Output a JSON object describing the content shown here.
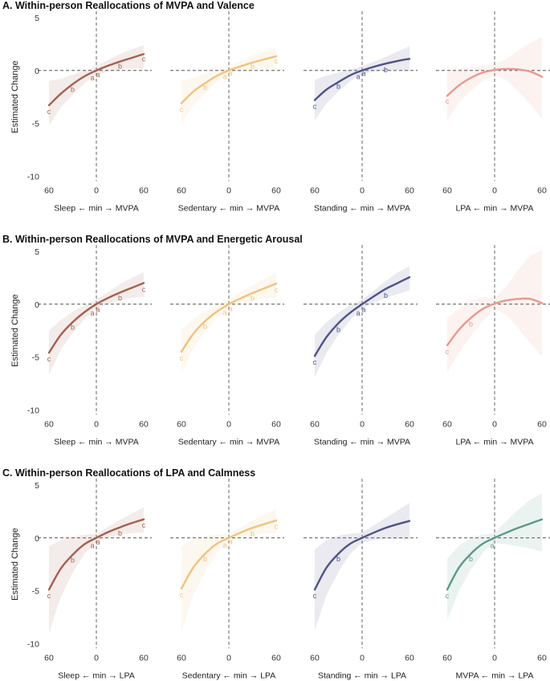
{
  "chart_data": [
    {
      "type": "line",
      "title": "A. Within-person Reallocations of MVPA and Valence",
      "ylabel": "Estimated Change",
      "ylim": [
        -10,
        5
      ],
      "yticks": [
        5,
        0,
        -5,
        -10
      ],
      "xticks": [
        60,
        0,
        60
      ],
      "panels": [
        {
          "xlabel": "Sleep ← min → MVPA",
          "color": "#a5604f",
          "x": [
            -60,
            -45,
            -30,
            -15,
            0,
            15,
            30,
            45,
            60
          ],
          "y": [
            -3.3,
            -2.2,
            -1.3,
            -0.55,
            0,
            0.45,
            0.85,
            1.2,
            1.55
          ],
          "ci_lower": [
            -5.2,
            -3.5,
            -2.3,
            -1.2,
            -0.4,
            -0.1,
            0.1,
            0.2,
            0.1
          ],
          "ci_upper": [
            -1.0,
            -0.8,
            -0.4,
            0,
            0.45,
            1.0,
            1.55,
            2.0,
            2.4
          ],
          "letters": [
            {
              "text": "c",
              "x": -60,
              "y": -3.9
            },
            {
              "text": "b",
              "x": -30,
              "y": -1.8
            },
            {
              "text": "a",
              "x": -5,
              "y": -0.7
            },
            {
              "text": "a",
              "x": 2,
              "y": -0.4
            },
            {
              "text": "b",
              "x": 30,
              "y": 0.4
            },
            {
              "text": "c",
              "x": 60,
              "y": 1.1
            }
          ]
        },
        {
          "xlabel": "Sedentary ← min → MVPA",
          "color": "#f1c27d",
          "x": [
            -60,
            -45,
            -30,
            -15,
            0,
            15,
            30,
            45,
            60
          ],
          "y": [
            -3.1,
            -2.0,
            -1.2,
            -0.5,
            0,
            0.4,
            0.75,
            1.05,
            1.35
          ],
          "ci_lower": [
            -5.0,
            -3.3,
            -2.2,
            -1.1,
            -0.4,
            -0.1,
            0.05,
            0.15,
            0.1
          ],
          "ci_upper": [
            -1.0,
            -0.7,
            -0.3,
            0.05,
            0.45,
            0.9,
            1.4,
            1.8,
            2.2
          ],
          "letters": [
            {
              "text": "c",
              "x": -60,
              "y": -3.7
            },
            {
              "text": "b",
              "x": -30,
              "y": -1.6
            },
            {
              "text": "a",
              "x": -5,
              "y": -0.6
            },
            {
              "text": "a",
              "x": 2,
              "y": -0.3
            },
            {
              "text": "b",
              "x": 30,
              "y": 0.35
            },
            {
              "text": "c",
              "x": 60,
              "y": 0.9
            }
          ]
        },
        {
          "xlabel": "Standing ← min → MVPA",
          "color": "#4f5387",
          "x": [
            -60,
            -45,
            -30,
            -15,
            0,
            15,
            30,
            45,
            60
          ],
          "y": [
            -2.8,
            -1.8,
            -1.1,
            -0.45,
            0,
            0.35,
            0.65,
            0.9,
            1.1
          ],
          "ci_lower": [
            -4.7,
            -3.1,
            -2.0,
            -1.0,
            -0.35,
            -0.1,
            0,
            0.05,
            -0.1
          ],
          "ci_upper": [
            -0.9,
            -0.5,
            -0.2,
            0.1,
            0.4,
            0.85,
            1.3,
            1.8,
            2.3
          ],
          "letters": [
            {
              "text": "c",
              "x": -60,
              "y": -3.4
            },
            {
              "text": "b",
              "x": -30,
              "y": -1.5
            },
            {
              "text": "a",
              "x": -5,
              "y": -0.6
            },
            {
              "text": "a",
              "x": 2,
              "y": -0.3
            },
            {
              "text": "b",
              "x": 30,
              "y": 0.05
            }
          ]
        },
        {
          "xlabel": "LPA ← min → MVPA",
          "color": "#e8998d",
          "x": [
            -60,
            -45,
            -30,
            -15,
            0,
            15,
            30,
            45,
            60
          ],
          "y": [
            -2.4,
            -1.4,
            -0.7,
            -0.2,
            0.05,
            0.15,
            0.1,
            -0.1,
            -0.6
          ],
          "ci_lower": [
            -4.7,
            -3.0,
            -1.9,
            -1.0,
            -0.4,
            -0.9,
            -2.0,
            -3.2,
            -4.6
          ],
          "ci_upper": [
            -0.2,
            0.1,
            0.3,
            0.5,
            0.55,
            1.1,
            1.9,
            2.6,
            3.2
          ],
          "letters": [
            {
              "text": "c",
              "x": -60,
              "y": -2.9
            }
          ]
        }
      ]
    },
    {
      "type": "line",
      "title": "B. Within-person Reallocations of MVPA and Energetic Arousal",
      "ylabel": "Estimated Change",
      "ylim": [
        -10,
        5
      ],
      "yticks": [
        5,
        0,
        -5,
        -10
      ],
      "xticks": [
        60,
        0,
        60
      ],
      "panels": [
        {
          "xlabel": "Sleep ← min → MVPA",
          "color": "#a5604f",
          "x": [
            -60,
            -45,
            -30,
            -15,
            0,
            15,
            30,
            45,
            60
          ],
          "y": [
            -4.6,
            -2.9,
            -1.7,
            -0.75,
            0,
            0.6,
            1.1,
            1.55,
            2.0
          ],
          "ci_lower": [
            -6.7,
            -4.3,
            -2.7,
            -1.4,
            -0.45,
            0.05,
            0.35,
            0.6,
            0.7
          ],
          "ci_upper": [
            -2.5,
            -1.5,
            -0.7,
            -0.1,
            0.45,
            1.15,
            1.9,
            2.5,
            3.0
          ],
          "letters": [
            {
              "text": "c",
              "x": -60,
              "y": -5.2
            },
            {
              "text": "b",
              "x": -30,
              "y": -2.2
            },
            {
              "text": "a",
              "x": -5,
              "y": -0.85
            },
            {
              "text": "a",
              "x": 2,
              "y": -0.5
            },
            {
              "text": "b",
              "x": 30,
              "y": 0.6
            },
            {
              "text": "c",
              "x": 60,
              "y": 1.4
            }
          ]
        },
        {
          "xlabel": "Sedentary ← min → MVPA",
          "color": "#f1c27d",
          "x": [
            -60,
            -45,
            -30,
            -15,
            0,
            15,
            30,
            45,
            60
          ],
          "y": [
            -4.5,
            -2.8,
            -1.6,
            -0.7,
            0,
            0.55,
            1.05,
            1.5,
            1.95
          ],
          "ci_lower": [
            -6.5,
            -4.2,
            -2.6,
            -1.3,
            -0.4,
            0.05,
            0.35,
            0.55,
            0.6
          ],
          "ci_upper": [
            -2.4,
            -1.4,
            -0.6,
            -0.05,
            0.45,
            1.1,
            1.8,
            2.4,
            3.0
          ],
          "letters": [
            {
              "text": "c",
              "x": -60,
              "y": -5.1
            },
            {
              "text": "b",
              "x": -30,
              "y": -2.1
            },
            {
              "text": "a",
              "x": -5,
              "y": -0.8
            },
            {
              "text": "a",
              "x": 2,
              "y": -0.45
            },
            {
              "text": "b",
              "x": 30,
              "y": 0.55
            },
            {
              "text": "c",
              "x": 60,
              "y": 1.35
            }
          ]
        },
        {
          "xlabel": "Standing ← min → MVPA",
          "color": "#4f5387",
          "x": [
            -60,
            -45,
            -30,
            -15,
            0,
            15,
            30,
            45,
            60
          ],
          "y": [
            -4.9,
            -3.1,
            -1.8,
            -0.8,
            0,
            0.75,
            1.45,
            2.0,
            2.55
          ],
          "ci_lower": [
            -6.9,
            -4.6,
            -2.9,
            -1.5,
            -0.45,
            0.15,
            0.6,
            0.95,
            1.3
          ],
          "ci_upper": [
            -2.9,
            -1.7,
            -0.8,
            -0.1,
            0.45,
            1.3,
            2.2,
            3.0,
            3.6
          ],
          "letters": [
            {
              "text": "c",
              "x": -60,
              "y": -5.5
            },
            {
              "text": "b",
              "x": -30,
              "y": -2.4
            },
            {
              "text": "a",
              "x": -5,
              "y": -0.85
            },
            {
              "text": "a",
              "x": 2,
              "y": -0.5
            },
            {
              "text": "b",
              "x": 30,
              "y": 0.8
            }
          ]
        },
        {
          "xlabel": "LPA ← min → MVPA",
          "color": "#e8998d",
          "x": [
            -60,
            -45,
            -30,
            -15,
            0,
            15,
            30,
            45,
            60
          ],
          "y": [
            -3.9,
            -2.4,
            -1.3,
            -0.45,
            0.05,
            0.35,
            0.5,
            0.5,
            0.1
          ],
          "ci_lower": [
            -6.5,
            -4.6,
            -3.0,
            -1.6,
            -0.5,
            -1.0,
            -2.3,
            -3.7,
            -4.9
          ],
          "ci_upper": [
            -1.3,
            -0.4,
            0.3,
            0.7,
            0.6,
            1.7,
            3.3,
            4.6,
            5.1
          ],
          "letters": [
            {
              "text": "c",
              "x": -60,
              "y": -4.5
            },
            {
              "text": "b",
              "x": -30,
              "y": -1.9
            }
          ]
        }
      ]
    },
    {
      "type": "line",
      "title": "C. Within-person Reallocations of LPA and Calmness",
      "ylabel": "Estimated Change",
      "ylim": [
        -10,
        5
      ],
      "yticks": [
        5,
        0,
        -5,
        -10
      ],
      "xticks": [
        60,
        0,
        60
      ],
      "panels": [
        {
          "xlabel": "Sleep ← min → LPA",
          "color": "#a5604f",
          "x": [
            -60,
            -45,
            -30,
            -15,
            0,
            15,
            30,
            45,
            60
          ],
          "y": [
            -4.9,
            -2.9,
            -1.6,
            -0.6,
            0,
            0.55,
            1.0,
            1.4,
            1.75
          ],
          "ci_lower": [
            -9.0,
            -5.6,
            -3.3,
            -1.5,
            -0.4,
            0.05,
            0.3,
            0.45,
            0.5
          ],
          "ci_upper": [
            -0.8,
            -0.2,
            0.1,
            0.3,
            0.4,
            1.05,
            1.7,
            2.3,
            2.9
          ],
          "letters": [
            {
              "text": "c",
              "x": -60,
              "y": -5.5
            },
            {
              "text": "b",
              "x": -30,
              "y": -2.1
            },
            {
              "text": "a",
              "x": -5,
              "y": -0.75
            },
            {
              "text": "a",
              "x": 2,
              "y": -0.4
            },
            {
              "text": "b",
              "x": 30,
              "y": 0.45
            },
            {
              "text": "c",
              "x": 60,
              "y": 1.2
            }
          ]
        },
        {
          "xlabel": "Sedentary ← min → LPA",
          "color": "#f1c27d",
          "x": [
            -60,
            -45,
            -30,
            -15,
            0,
            15,
            30,
            45,
            60
          ],
          "y": [
            -4.8,
            -2.8,
            -1.5,
            -0.55,
            0,
            0.5,
            0.95,
            1.3,
            1.65
          ],
          "ci_lower": [
            -8.8,
            -5.4,
            -3.2,
            -1.4,
            -0.4,
            0,
            0.25,
            0.4,
            0.45
          ],
          "ci_upper": [
            -0.8,
            -0.2,
            0.1,
            0.3,
            0.4,
            1.0,
            1.65,
            2.2,
            2.8
          ],
          "letters": [
            {
              "text": "c",
              "x": -60,
              "y": -5.4
            },
            {
              "text": "b",
              "x": -30,
              "y": -2.0
            },
            {
              "text": "a",
              "x": -5,
              "y": -0.7
            },
            {
              "text": "a",
              "x": 2,
              "y": -0.35
            },
            {
              "text": "b",
              "x": 30,
              "y": 0.4
            },
            {
              "text": "c",
              "x": 60,
              "y": 1.1
            }
          ]
        },
        {
          "xlabel": "Standing ← min → LPA",
          "color": "#4f5387",
          "x": [
            -60,
            -45,
            -30,
            -15,
            0,
            15,
            30,
            45,
            60
          ],
          "y": [
            -4.9,
            -2.8,
            -1.5,
            -0.55,
            0,
            0.5,
            0.95,
            1.3,
            1.6
          ],
          "ci_lower": [
            -8.7,
            -5.4,
            -3.2,
            -1.5,
            -0.5,
            -0.2,
            -0.1,
            -0.1,
            -0.2
          ],
          "ci_upper": [
            -1.1,
            -0.2,
            0.2,
            0.4,
            0.5,
            1.2,
            1.9,
            2.6,
            3.3
          ],
          "letters": [
            {
              "text": "c",
              "x": -60,
              "y": -5.5
            },
            {
              "text": "b",
              "x": -30,
              "y": -2.0
            }
          ]
        },
        {
          "xlabel": "MVPA ← min → LPA",
          "color": "#5b9a8b",
          "x": [
            -60,
            -45,
            -30,
            -15,
            0,
            15,
            30,
            45,
            60
          ],
          "y": [
            -4.9,
            -2.8,
            -1.5,
            -0.55,
            0,
            0.5,
            0.95,
            1.35,
            1.75
          ],
          "ci_lower": [
            -7.8,
            -5.0,
            -3.0,
            -1.4,
            -0.5,
            -0.6,
            -0.8,
            -1.0,
            -1.3
          ],
          "ci_upper": [
            -2.0,
            -0.7,
            0,
            0.3,
            0.5,
            1.6,
            2.7,
            3.6,
            4.2
          ],
          "letters": [
            {
              "text": "c",
              "x": -60,
              "y": -5.5
            },
            {
              "text": "b",
              "x": -30,
              "y": -2.0
            },
            {
              "text": "a",
              "x": -3,
              "y": -0.75
            }
          ]
        }
      ]
    }
  ]
}
